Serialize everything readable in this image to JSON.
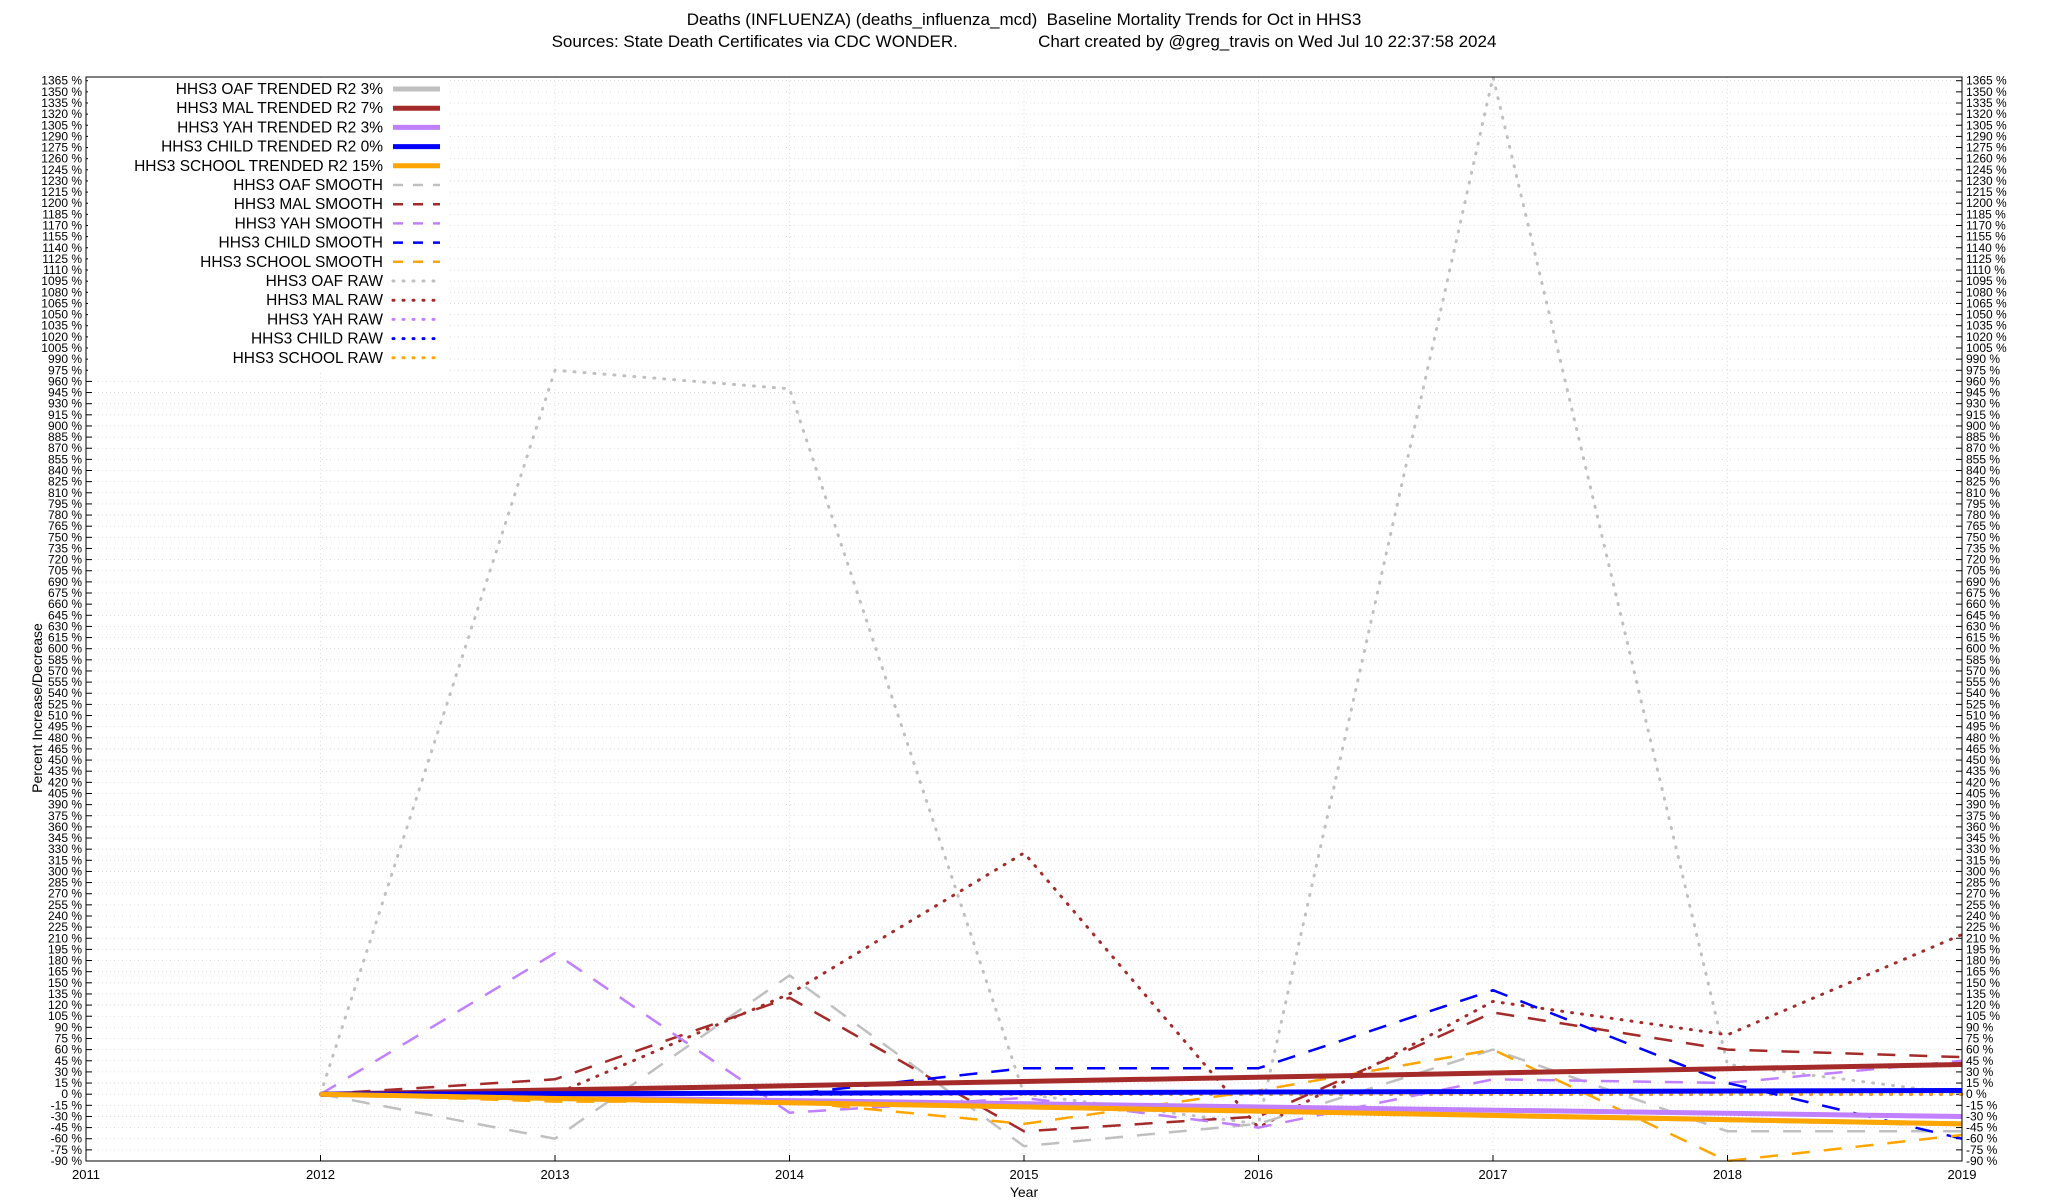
{
  "header": {
    "title_line1": "Deaths (INFLUENZA) (deaths_influenza_mcd)  Baseline Mortality Trends for Oct in HHS3",
    "title_line2": "Sources: State Death Certificates via CDC WONDER.                 Chart created by @greg_travis on Wed Jul 10 22:37:58 2024"
  },
  "chart_data": {
    "type": "line",
    "title": "Deaths (INFLUENZA) (deaths_influenza_mcd)  Baseline Mortality Trends for Oct in HHS3",
    "subtitle": "Sources: State Death Certificates via CDC WONDER.                 Chart created by @greg_travis on Wed Jul 10 22:37:58 2024",
    "xlabel": "Year",
    "ylabel": "Percent Increase/Decrease",
    "xlim": [
      2011,
      2019
    ],
    "ylim": [
      -90,
      1370
    ],
    "x_ticks": [
      2011,
      2012,
      2013,
      2014,
      2015,
      2016,
      2017,
      2018,
      2019
    ],
    "y_tick_step": 15,
    "y_tick_suffix": " %",
    "grid": true,
    "legend_position": "top-left",
    "series": [
      {
        "name": "HHS3 OAF TRENDED R2  3%",
        "style": "solid",
        "color": "#c0c0c0",
        "x": [
          2012,
          2019
        ],
        "y": [
          0,
          -40
        ]
      },
      {
        "name": "HHS3 MAL TRENDED R2  7%",
        "style": "solid",
        "color": "#a52a2a",
        "x": [
          2012,
          2019
        ],
        "y": [
          0,
          40
        ]
      },
      {
        "name": "HHS3 YAH TRENDED R2  3%",
        "style": "solid",
        "color": "#c080ff",
        "x": [
          2012,
          2019
        ],
        "y": [
          0,
          -30
        ]
      },
      {
        "name": "HHS3 CHILD TRENDED R2  0%",
        "style": "solid",
        "color": "#0000ff",
        "x": [
          2012,
          2019
        ],
        "y": [
          0,
          5
        ]
      },
      {
        "name": "HHS3 SCHOOL TRENDED R2  15%",
        "style": "solid",
        "color": "#ffa500",
        "x": [
          2012,
          2019
        ],
        "y": [
          0,
          -40
        ]
      },
      {
        "name": "HHS3 OAF SMOOTH",
        "style": "dashed",
        "color": "#c0c0c0",
        "x": [
          2012,
          2013,
          2014,
          2015,
          2016,
          2017,
          2018,
          2019
        ],
        "y": [
          0,
          -60,
          160,
          -70,
          -40,
          60,
          -50,
          -50
        ]
      },
      {
        "name": "HHS3 MAL SMOOTH",
        "style": "dashed",
        "color": "#a52a2a",
        "x": [
          2012,
          2013,
          2014,
          2015,
          2016,
          2017,
          2018,
          2019
        ],
        "y": [
          0,
          20,
          130,
          -50,
          -30,
          110,
          60,
          50
        ]
      },
      {
        "name": "HHS3 YAH SMOOTH",
        "style": "dashed",
        "color": "#c080ff",
        "x": [
          2012,
          2013,
          2014,
          2015,
          2016,
          2017,
          2018,
          2019
        ],
        "y": [
          0,
          190,
          -25,
          -5,
          -45,
          20,
          15,
          45
        ]
      },
      {
        "name": "HHS3 CHILD SMOOTH",
        "style": "dashed",
        "color": "#0000ff",
        "x": [
          2012,
          2013,
          2014,
          2015,
          2016,
          2017,
          2018,
          2019
        ],
        "y": [
          0,
          0,
          0,
          35,
          35,
          140,
          15,
          -60
        ]
      },
      {
        "name": "HHS3 SCHOOL SMOOTH",
        "style": "dashed",
        "color": "#ffa500",
        "x": [
          2012,
          2013,
          2014,
          2015,
          2016,
          2017,
          2018,
          2019
        ],
        "y": [
          0,
          -10,
          -10,
          -40,
          5,
          60,
          -90,
          -55
        ]
      },
      {
        "name": "HHS3 OAF RAW",
        "style": "dotted",
        "color": "#c0c0c0",
        "x": [
          2012,
          2013,
          2014,
          2015,
          2016,
          2017,
          2018,
          2019
        ],
        "y": [
          0,
          975,
          950,
          0,
          -40,
          1370,
          40,
          0
        ]
      },
      {
        "name": "HHS3 MAL RAW",
        "style": "dotted",
        "color": "#a52a2a",
        "x": [
          2012,
          2013,
          2014,
          2015,
          2016,
          2017,
          2018,
          2019
        ],
        "y": [
          0,
          0,
          135,
          325,
          -45,
          125,
          80,
          215
        ]
      },
      {
        "name": "HHS3 YAH RAW",
        "style": "dotted",
        "color": "#c080ff",
        "x": [
          2012,
          2013,
          2014,
          2015,
          2016,
          2017,
          2018,
          2019
        ],
        "y": [
          0,
          0,
          0,
          0,
          0,
          0,
          0,
          0
        ]
      },
      {
        "name": "HHS3 CHILD RAW",
        "style": "dotted",
        "color": "#0000ff",
        "x": [
          2012,
          2013,
          2014,
          2015,
          2016,
          2017,
          2018,
          2019
        ],
        "y": [
          0,
          0,
          0,
          0,
          0,
          0,
          0,
          0
        ]
      },
      {
        "name": "HHS3 SCHOOL RAW",
        "style": "dotted",
        "color": "#ffa500",
        "x": [
          2012,
          2013,
          2014,
          2015,
          2016,
          2017,
          2018,
          2019
        ],
        "y": [
          0,
          0,
          0,
          0,
          0,
          0,
          0,
          0
        ]
      }
    ]
  }
}
